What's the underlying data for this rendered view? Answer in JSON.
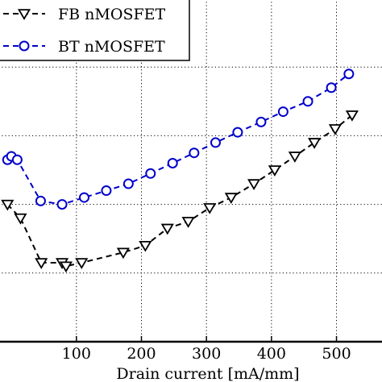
{
  "chart_data": {
    "type": "line",
    "xlabel": "Drain current  [mA/mm]",
    "ylabel": "",
    "xlim": [
      -20,
      570
    ],
    "ylim": [
      0,
      1
    ],
    "x_ticks": [
      100,
      200,
      300,
      400,
      500
    ],
    "grid": true,
    "grid_style": "dotted",
    "legend": {
      "position": "top-left",
      "entries": [
        "FB nMOSFET",
        "BT nMOSFET"
      ]
    },
    "series": [
      {
        "name": "FB nMOSFET",
        "color": "#000000",
        "marker": "triangle-down",
        "line_style": "dashed",
        "x": [
          -6,
          14,
          46,
          78,
          84,
          108,
          172,
          206,
          240,
          272,
          305,
          338,
          373,
          405,
          436,
          466,
          498,
          524
        ],
        "y": [
          0.4,
          0.36,
          0.23,
          0.23,
          0.22,
          0.23,
          0.26,
          0.28,
          0.33,
          0.35,
          0.39,
          0.42,
          0.46,
          0.5,
          0.54,
          0.58,
          0.62,
          0.66
        ]
      },
      {
        "name": "BT nMOSFET",
        "color": "#0000cc",
        "marker": "circle",
        "line_style": "dashed",
        "x": [
          -6,
          0,
          9,
          45,
          78,
          112,
          146,
          180,
          214,
          248,
          281,
          314,
          348,
          384,
          418,
          456,
          492,
          519
        ],
        "y": [
          0.53,
          0.54,
          0.53,
          0.41,
          0.4,
          0.42,
          0.44,
          0.46,
          0.49,
          0.52,
          0.55,
          0.58,
          0.61,
          0.64,
          0.67,
          0.7,
          0.74,
          0.78
        ]
      }
    ]
  }
}
